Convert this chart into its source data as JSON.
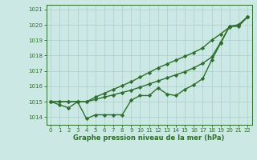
{
  "background_color": "#cce8e4",
  "grid_color": "#aacfcb",
  "line_color": "#2d6e2d",
  "x_label": "Graphe pression niveau de la mer (hPa)",
  "xlim": [
    -0.5,
    22.5
  ],
  "ylim": [
    1013.5,
    1021.3
  ],
  "yticks": [
    1014,
    1015,
    1016,
    1017,
    1018,
    1019,
    1020,
    1021
  ],
  "xticks": [
    0,
    1,
    2,
    3,
    4,
    5,
    6,
    7,
    8,
    9,
    10,
    11,
    12,
    13,
    14,
    15,
    16,
    17,
    18,
    19,
    20,
    21,
    22
  ],
  "series": [
    [
      1015.0,
      1014.8,
      1014.6,
      1015.0,
      1013.9,
      1014.15,
      1014.15,
      1014.15,
      1014.15,
      1015.1,
      1015.4,
      1015.4,
      1015.9,
      1015.5,
      1015.4,
      1015.8,
      1016.1,
      1016.5,
      1017.7,
      1018.8,
      1019.9,
      1019.9,
      1020.5
    ],
    [
      1015.0,
      1015.0,
      1015.0,
      1015.0,
      1015.0,
      1015.3,
      1015.55,
      1015.8,
      1016.05,
      1016.3,
      1016.6,
      1016.9,
      1017.2,
      1017.45,
      1017.7,
      1017.95,
      1018.2,
      1018.5,
      1019.0,
      1019.4,
      1019.85,
      1020.0,
      1020.5
    ],
    [
      1015.0,
      1015.0,
      1015.0,
      1015.0,
      1015.0,
      1015.15,
      1015.3,
      1015.45,
      1015.6,
      1015.75,
      1015.95,
      1016.15,
      1016.35,
      1016.55,
      1016.75,
      1016.95,
      1017.2,
      1017.5,
      1017.9,
      1018.85,
      1019.9,
      1020.0,
      1020.5
    ]
  ],
  "marker": "D",
  "markersize": 2.2,
  "linewidth": 1.0,
  "tick_fontsize": 5.0,
  "xlabel_fontsize": 6.0
}
